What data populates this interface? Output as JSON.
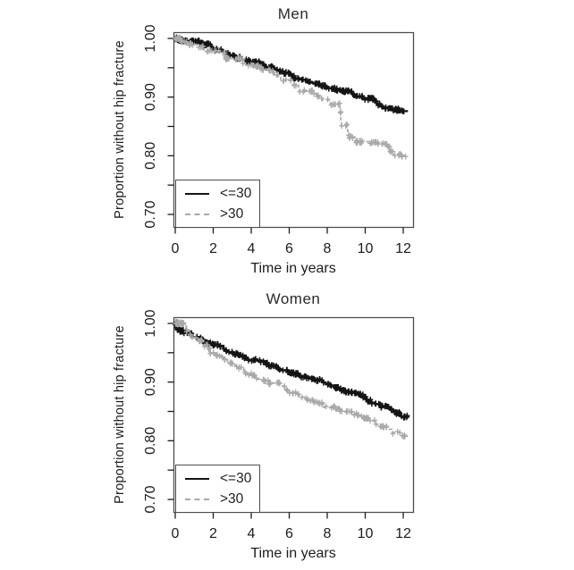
{
  "palette": {
    "series_le30": "#141414",
    "series_gt30": "#a9a9a9",
    "axis": "#4d4d4d",
    "text": "#1c1c1c",
    "background": "#ffffff"
  },
  "chart_data": [
    {
      "type": "line",
      "curve_style": "kaplan-meier-step",
      "title": "Men",
      "xlabel": "Time in years",
      "ylabel": "Proportion without hip fracture",
      "x": [
        0,
        1,
        2,
        3,
        4,
        5,
        6,
        7,
        8,
        9,
        10,
        11,
        12
      ],
      "series": [
        {
          "name": "<=30",
          "line": "solid",
          "color": "#141414",
          "values": [
            1.0,
            0.995,
            0.981,
            0.971,
            0.961,
            0.951,
            0.941,
            0.925,
            0.917,
            0.91,
            0.897,
            0.882,
            0.876
          ]
        },
        {
          "name": ">30",
          "line": "dashed",
          "color": "#a9a9a9",
          "values": [
            1.0,
            0.99,
            0.978,
            0.966,
            0.955,
            0.945,
            0.928,
            0.91,
            0.895,
            0.852,
            0.824,
            0.82,
            0.8
          ]
        }
      ],
      "xticks": [
        0,
        2,
        4,
        6,
        8,
        10,
        12
      ],
      "yticks": [
        {
          "v": 1.0,
          "label": "1.00"
        },
        {
          "v": 0.9,
          "label": "0.90"
        },
        {
          "v": 0.8,
          "label": "0.80"
        },
        {
          "v": 0.7,
          "label": "0.70"
        }
      ],
      "yticks_minor": [
        0.95,
        0.85,
        0.75
      ],
      "xlim": [
        -0.1,
        12.6
      ],
      "ylim": [
        0.678,
        1.011
      ],
      "grid": false,
      "legend_position": "bottom-left"
    },
    {
      "type": "line",
      "curve_style": "kaplan-meier-step",
      "title": "Women",
      "xlabel": "Time in years",
      "ylabel": "Proportion without hip fracture",
      "x": [
        0,
        1,
        2,
        3,
        4,
        5,
        6,
        7,
        8,
        9,
        10,
        11,
        12
      ],
      "series": [
        {
          "name": "<=30",
          "line": "solid",
          "color": "#141414",
          "values": [
            1.0,
            0.977,
            0.964,
            0.95,
            0.938,
            0.928,
            0.917,
            0.908,
            0.897,
            0.884,
            0.874,
            0.858,
            0.841
          ]
        },
        {
          "name": ">30",
          "line": "dashed",
          "color": "#a9a9a9",
          "values": [
            1.0,
            0.975,
            0.95,
            0.933,
            0.913,
            0.898,
            0.882,
            0.869,
            0.857,
            0.849,
            0.838,
            0.824,
            0.808
          ]
        }
      ],
      "xticks": [
        0,
        2,
        4,
        6,
        8,
        10,
        12
      ],
      "yticks": [
        {
          "v": 1.0,
          "label": "1.00"
        },
        {
          "v": 0.9,
          "label": "0.90"
        },
        {
          "v": 0.8,
          "label": "0.80"
        },
        {
          "v": 0.7,
          "label": "0.70"
        }
      ],
      "yticks_minor": [
        0.95,
        0.85,
        0.75
      ],
      "xlim": [
        -0.1,
        12.6
      ],
      "ylim": [
        0.678,
        1.011
      ],
      "grid": false,
      "legend_position": "bottom-left"
    }
  ]
}
